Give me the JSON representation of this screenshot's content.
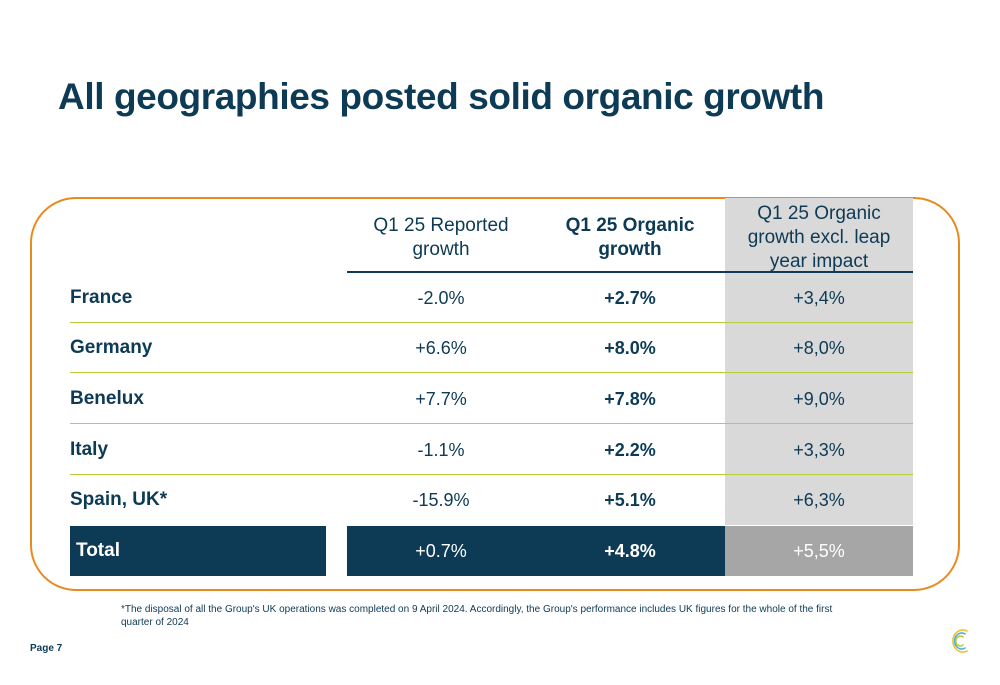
{
  "title": "All geographies posted solid organic growth",
  "table": {
    "headers": [
      "Q1 25 Reported growth",
      "Q1 25 Organic growth",
      "Q1 25 Organic growth excl. leap year impact"
    ],
    "rows": [
      {
        "label": "France",
        "reported": "-2.0%",
        "organic": "+2.7%",
        "excl_leap": "+3,4%"
      },
      {
        "label": "Germany",
        "reported": "+6.6%",
        "organic": "+8.0%",
        "excl_leap": "+8,0%"
      },
      {
        "label": "Benelux",
        "reported": "+7.7%",
        "organic": "+7.8%",
        "excl_leap": "+9,0%"
      },
      {
        "label": "Italy",
        "reported": "-1.1%",
        "organic": "+2.2%",
        "excl_leap": "+3,3%"
      },
      {
        "label": "Spain, UK*",
        "reported": "-15.9%",
        "organic": "+5.1%",
        "excl_leap": "+6,3%"
      }
    ],
    "total": {
      "label": "Total",
      "reported": "+0.7%",
      "organic": "+4.8%",
      "excl_leap": "+5,5%"
    }
  },
  "footnote": "*The disposal of all the Group's UK operations was completed on 9 April 2024. Accordingly, the Group's performance includes UK figures for the whole of the first quarter of 2024",
  "page_label": "Page 7",
  "logo_icon": "c-logo-icon",
  "colors": {
    "navy": "#0d3a55",
    "orange": "#e98a1c",
    "green_rule": "#b3cf3c",
    "grey_col": "#d9d9d9",
    "grey_total": "#a6a6a6"
  }
}
